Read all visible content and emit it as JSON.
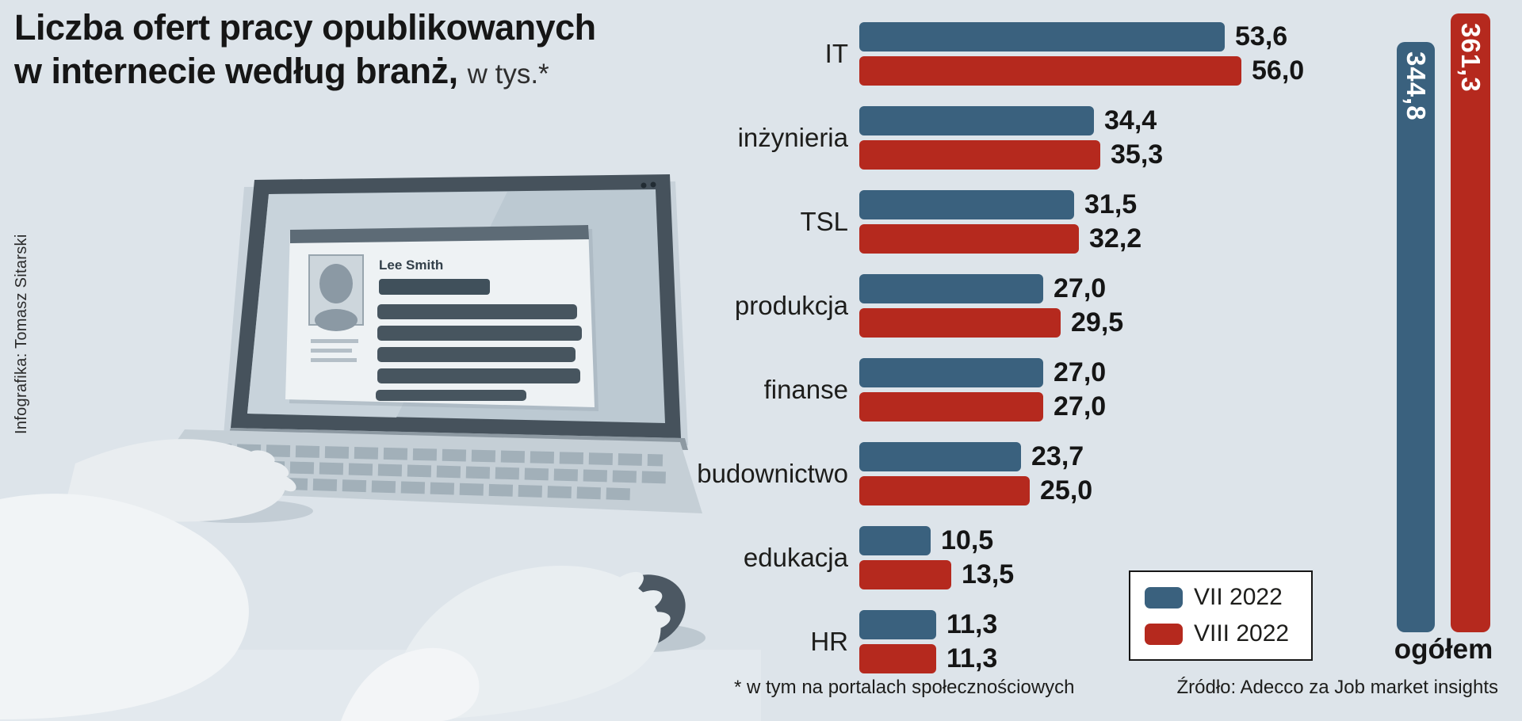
{
  "title": {
    "line1": "Liczba ofert pracy opublikowanych",
    "line2_bold": "w internecie według  branż,",
    "line2_suffix": "w tys.*"
  },
  "credit": "Infografika: Tomasz Sitarski",
  "colors": {
    "background": "#dde4ea",
    "text": "#1d1d1b",
    "blue": "#3a617e",
    "red": "#b5291e"
  },
  "laptop": {
    "screen_name": "Lee Smith"
  },
  "chart_data": {
    "type": "bar",
    "orientation": "horizontal",
    "title": "Liczba ofert pracy opublikowanych w internecie według branż, w tys.*",
    "unit": "tys.",
    "categories": [
      "IT",
      "inżynieria",
      "TSL",
      "produkcja",
      "finanse",
      "budownictwo",
      "edukacja",
      "HR"
    ],
    "series": [
      {
        "name": "VII 2022",
        "color": "#3a617e",
        "values": [
          53.6,
          34.4,
          31.5,
          27.0,
          27.0,
          23.7,
          10.5,
          11.3
        ],
        "labels": [
          "53,6",
          "34,4",
          "31,5",
          "27,0",
          "27,0",
          "23,7",
          "10,5",
          "11,3"
        ]
      },
      {
        "name": "VIII 2022",
        "color": "#b5291e",
        "values": [
          56.0,
          35.3,
          32.2,
          29.5,
          27.0,
          25.0,
          13.5,
          11.3
        ],
        "labels": [
          "56,0",
          "35,3",
          "32,2",
          "29,5",
          "27,0",
          "25,0",
          "13,5",
          "11,3"
        ]
      }
    ],
    "totals": {
      "label": "ogółem",
      "series": [
        {
          "name": "VII 2022",
          "value": 344.8,
          "label": "344,8",
          "color": "#3a617e"
        },
        {
          "name": "VIII 2022",
          "value": 361.3,
          "label": "361,3",
          "color": "#b5291e"
        }
      ]
    },
    "xlim": [
      0,
      60
    ],
    "grid": false,
    "legend_position": "bottom-right",
    "footnote": "* w tym na portalach społecznościowych",
    "source": "Źródło: Adecco za Job market insights"
  }
}
